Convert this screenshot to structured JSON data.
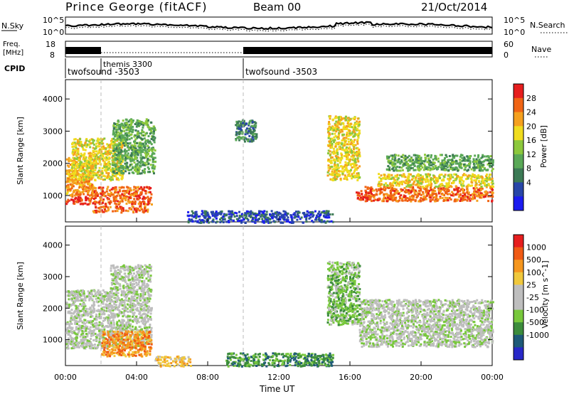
{
  "header": {
    "station": "Prince George (fitACF)",
    "beam": "Beam 00",
    "date": "21/Oct/2014"
  },
  "top_strip": {
    "left_label": "N.Sky",
    "right_label": "N.Search",
    "y_ticks_left": [
      "10^5",
      "10^0"
    ],
    "y_ticks_right": [
      "10^5",
      "10^0"
    ]
  },
  "freq_strip": {
    "left_label_1": "Freq.",
    "left_label_2": "[MHz]",
    "right_label": "Nave",
    "y_ticks_left": [
      "18",
      "8"
    ],
    "y_ticks_right": [
      "60",
      "0"
    ]
  },
  "cpid": {
    "label": "CPID",
    "segments": [
      {
        "name": "twofsound -3503",
        "start_hour": 0
      },
      {
        "name": "themis 3300",
        "start_hour": 2
      },
      {
        "name": "twofsound -3503",
        "start_hour": 10
      }
    ]
  },
  "axes": {
    "x_label": "Time UT",
    "x_ticks": [
      "00:00",
      "04:00",
      "08:00",
      "12:00",
      "16:00",
      "20:00",
      "00:00"
    ],
    "y_label": "Slant Range [km]",
    "y_ticks": [
      "1000",
      "2000",
      "3000",
      "4000"
    ]
  },
  "power_scale": {
    "label": "Power [dB]",
    "ticks": [
      "4",
      "8",
      "12",
      "16",
      "20",
      "24",
      "28"
    ],
    "colors": [
      "#1c1cf0",
      "#2846a8",
      "#3c7a55",
      "#5aa857",
      "#8cc83c",
      "#f0dc1e",
      "#f5a01e",
      "#f06414",
      "#e61e1e"
    ]
  },
  "velocity_scale": {
    "label": "Velocity [m s^-1]",
    "ticks": [
      "1000",
      "500",
      "100",
      "25",
      "-25",
      "-100",
      "-500",
      "-1000"
    ],
    "colors": [
      "#2828c8",
      "#1e5a78",
      "#3c8c3c",
      "#78c83c",
      "#bebebe",
      "#bebebe",
      "#f0c83c",
      "#f5961e",
      "#f05a14",
      "#e61e1e"
    ]
  },
  "chart_data": {
    "type": "heatmap",
    "x_range_hours": [
      0,
      24
    ],
    "y_range_km": [
      180,
      4600
    ],
    "cpid_boundaries_hours": [
      2,
      10
    ],
    "power_features": [
      {
        "t0": 0.0,
        "t1": 1.2,
        "r0": 750,
        "r1": 1000,
        "level": 8
      },
      {
        "t0": 1.2,
        "t1": 4.8,
        "r0": 750,
        "r1": 1300,
        "level": 7
      },
      {
        "t0": 0.0,
        "t1": 1.5,
        "r0": 1000,
        "r1": 2200,
        "level": 6
      },
      {
        "t0": 0.3,
        "t1": 3.2,
        "r0": 1500,
        "r1": 2800,
        "level": 5
      },
      {
        "t0": 2.6,
        "t1": 5.0,
        "r0": 1700,
        "r1": 3400,
        "level": 3
      },
      {
        "t0": 1.5,
        "t1": 4.6,
        "r0": 500,
        "r1": 700,
        "level": 7
      },
      {
        "t0": 14.7,
        "t1": 16.5,
        "r0": 1500,
        "r1": 3500,
        "level": 5
      },
      {
        "t0": 16.3,
        "t1": 17.0,
        "r0": 900,
        "r1": 1200,
        "level": 8
      },
      {
        "t0": 16.8,
        "t1": 24.0,
        "r0": 850,
        "r1": 1300,
        "level": 7
      },
      {
        "t0": 17.5,
        "t1": 24.0,
        "r0": 1300,
        "r1": 1700,
        "level": 5
      },
      {
        "t0": 18.0,
        "t1": 24.0,
        "r0": 1800,
        "r1": 2300,
        "level": 3
      },
      {
        "t0": 6.8,
        "t1": 15.0,
        "r0": 180,
        "r1": 550,
        "level": 1
      },
      {
        "t0": 9.5,
        "t1": 10.7,
        "r0": 2700,
        "r1": 3400,
        "level": 2
      }
    ],
    "velocity_features": [
      {
        "t0": 0.0,
        "t1": 4.8,
        "r0": 750,
        "r1": 2600,
        "level": 4
      },
      {
        "t0": 2.5,
        "t1": 4.8,
        "r0": 2600,
        "r1": 3400,
        "level": 4
      },
      {
        "t0": 2.0,
        "t1": 4.8,
        "r0": 500,
        "r1": 1300,
        "level": 7
      },
      {
        "t0": 16.5,
        "t1": 24.0,
        "r0": 800,
        "r1": 2300,
        "level": 4
      },
      {
        "t0": 14.7,
        "t1": 16.5,
        "r0": 1500,
        "r1": 3500,
        "level": 3
      },
      {
        "t0": 9.0,
        "t1": 15.0,
        "r0": 180,
        "r1": 600,
        "level": 2
      },
      {
        "t0": 5.0,
        "t1": 7.0,
        "r0": 180,
        "r1": 500,
        "level": 6
      }
    ]
  }
}
